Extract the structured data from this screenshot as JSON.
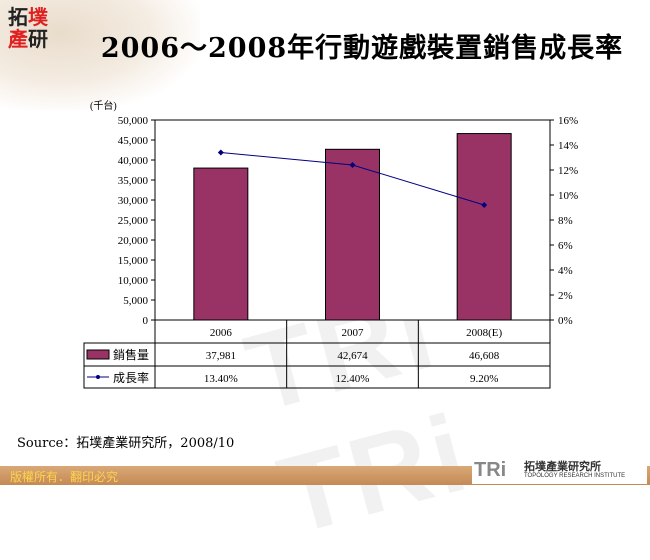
{
  "logo": {
    "chars": [
      "拓",
      "墣",
      "產",
      "研"
    ]
  },
  "title": "2006～2008年行動遊戲裝置銷售成長率",
  "unit_label": "(千台)",
  "chart_data": {
    "type": "bar+line",
    "title": "2006～2008年行動遊戲裝置銷售成長率",
    "categories": [
      "2006",
      "2007",
      "2008(E)"
    ],
    "series": [
      {
        "name": "銷售量",
        "type": "bar",
        "axis": "left",
        "values": [
          37981,
          42674,
          46608
        ],
        "labels": [
          "37,981",
          "42,674",
          "46,608"
        ],
        "color": "#993366"
      },
      {
        "name": "成長率",
        "type": "line",
        "axis": "right",
        "values": [
          13.4,
          12.4,
          9.2
        ],
        "labels": [
          "13.40%",
          "12.40%",
          "9.20%"
        ],
        "color": "#000080"
      }
    ],
    "ylabel": "(千台)",
    "ylim": [
      0,
      50000
    ],
    "yticks": [
      "0",
      "5,000",
      "10,000",
      "15,000",
      "20,000",
      "25,000",
      "30,000",
      "35,000",
      "40,000",
      "45,000",
      "50,000"
    ],
    "y2lim": [
      0,
      16
    ],
    "y2ticks": [
      "0%",
      "2%",
      "4%",
      "6%",
      "8%",
      "10%",
      "12%",
      "14%",
      "16%"
    ],
    "grid": false,
    "legend": "data-table"
  },
  "source": "Source：拓墣產業研究所，2008/10",
  "footer": {
    "copyright": "版權所有．翻印必究",
    "brand_short": "TRi",
    "brand_cn": "拓墣產業研究所",
    "brand_en": "TOPOLOGY RESEARCH INSTITUTE"
  }
}
